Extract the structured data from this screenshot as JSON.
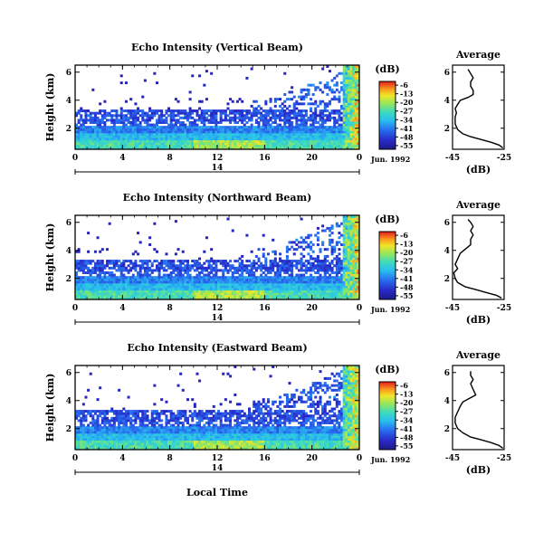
{
  "figure": {
    "shared_xlabel": "Local Time",
    "date_label": "Jun. 1992",
    "colorbar_unit": "(dB)",
    "average_title": "Average",
    "average_xlabel": "(dB)"
  },
  "chart_data": [
    {
      "type": "heatmap",
      "title": "Echo Intensity (Vertical Beam)",
      "xlabel": "",
      "ylabel": "Height (km)",
      "xlim": [
        0,
        24
      ],
      "ylim": [
        0.5,
        6.5
      ],
      "x_ticks": [
        "0",
        "4",
        "8",
        "12",
        "16",
        "20",
        "0"
      ],
      "y_ticks": [
        "2",
        "4",
        "6"
      ],
      "date_axis": {
        "label": "14",
        "date": "Jun. 1992"
      },
      "colorbar": {
        "unit": "(dB)",
        "ticks": [
          "-6",
          "-13",
          "-20",
          "-27",
          "-34",
          "-41",
          "-48",
          "-55"
        ],
        "range": [
          -58,
          -3
        ]
      },
      "average_profile": {
        "title": "Average",
        "xlabel": "(dB)",
        "xlim": [
          -45,
          -25
        ],
        "x_ticks": [
          "-45",
          "-25"
        ],
        "y_ticks": [
          "2",
          "4",
          "6"
        ],
        "points": [
          [
            -25.5,
            0.6
          ],
          [
            -27,
            0.8
          ],
          [
            -30,
            1.0
          ],
          [
            -34,
            1.2
          ],
          [
            -38,
            1.4
          ],
          [
            -41,
            1.6
          ],
          [
            -43,
            1.9
          ],
          [
            -44,
            2.3
          ],
          [
            -44,
            2.8
          ],
          [
            -43.5,
            3.1
          ],
          [
            -44,
            3.4
          ],
          [
            -43,
            3.7
          ],
          [
            -42,
            4.0
          ],
          [
            -39,
            4.2
          ],
          [
            -37,
            4.4
          ],
          [
            -37,
            4.7
          ],
          [
            -38,
            5.0
          ],
          [
            -38,
            5.3
          ],
          [
            -37,
            5.6
          ],
          [
            -38,
            5.9
          ],
          [
            -39,
            6.2
          ]
        ]
      }
    },
    {
      "type": "heatmap",
      "title": "Echo Intensity (Northward Beam)",
      "xlabel": "",
      "ylabel": "Height (km)",
      "xlim": [
        0,
        24
      ],
      "ylim": [
        0.5,
        6.5
      ],
      "x_ticks": [
        "0",
        "4",
        "8",
        "12",
        "16",
        "20",
        "0"
      ],
      "y_ticks": [
        "2",
        "4",
        "6"
      ],
      "date_axis": {
        "label": "14",
        "date": "Jun. 1992"
      },
      "colorbar": {
        "unit": "(dB)",
        "ticks": [
          "-6",
          "-13",
          "-20",
          "-27",
          "-34",
          "-41",
          "-48",
          "-55"
        ],
        "range": [
          -58,
          -3
        ]
      },
      "average_profile": {
        "title": "Average",
        "xlabel": "(dB)",
        "xlim": [
          -45,
          -25
        ],
        "x_ticks": [
          "-45",
          "-25"
        ],
        "y_ticks": [
          "2",
          "4",
          "6"
        ],
        "points": [
          [
            -26,
            0.6
          ],
          [
            -28,
            0.8
          ],
          [
            -32,
            1.0
          ],
          [
            -36,
            1.2
          ],
          [
            -40,
            1.4
          ],
          [
            -43,
            1.7
          ],
          [
            -44,
            2.0
          ],
          [
            -44.5,
            2.4
          ],
          [
            -43,
            2.7
          ],
          [
            -44,
            3.0
          ],
          [
            -43,
            3.4
          ],
          [
            -42,
            3.8
          ],
          [
            -40,
            4.1
          ],
          [
            -38,
            4.4
          ],
          [
            -38,
            4.8
          ],
          [
            -37,
            5.1
          ],
          [
            -38,
            5.4
          ],
          [
            -37,
            5.7
          ],
          [
            -38,
            6.0
          ],
          [
            -39,
            6.2
          ]
        ]
      }
    },
    {
      "type": "heatmap",
      "title": "Echo Intensity (Eastward Beam)",
      "xlabel": "Local Time",
      "ylabel": "Height (km)",
      "xlim": [
        0,
        24
      ],
      "ylim": [
        0.5,
        6.5
      ],
      "x_ticks": [
        "0",
        "4",
        "8",
        "12",
        "16",
        "20",
        "0"
      ],
      "y_ticks": [
        "2",
        "4",
        "6"
      ],
      "date_axis": {
        "label": "14",
        "date": "Jun. 1992"
      },
      "colorbar": {
        "unit": "(dB)",
        "ticks": [
          "-6",
          "-13",
          "-20",
          "-27",
          "-34",
          "-41",
          "-48",
          "-55"
        ],
        "range": [
          -58,
          -3
        ]
      },
      "average_profile": {
        "title": "Average",
        "xlabel": "(dB)",
        "xlim": [
          -45,
          -25
        ],
        "x_ticks": [
          "-45",
          "-25"
        ],
        "y_ticks": [
          "2",
          "4",
          "6"
        ],
        "points": [
          [
            -25.5,
            0.6
          ],
          [
            -27,
            0.8
          ],
          [
            -30,
            1.0
          ],
          [
            -34,
            1.2
          ],
          [
            -38,
            1.4
          ],
          [
            -41,
            1.7
          ],
          [
            -43,
            2.0
          ],
          [
            -44,
            2.4
          ],
          [
            -44,
            2.8
          ],
          [
            -43,
            3.2
          ],
          [
            -42,
            3.6
          ],
          [
            -41,
            3.9
          ],
          [
            -38,
            4.2
          ],
          [
            -36,
            4.4
          ],
          [
            -37,
            4.8
          ],
          [
            -38,
            5.2
          ],
          [
            -37,
            5.5
          ],
          [
            -38,
            5.8
          ],
          [
            -38,
            6.1
          ]
        ]
      }
    }
  ]
}
